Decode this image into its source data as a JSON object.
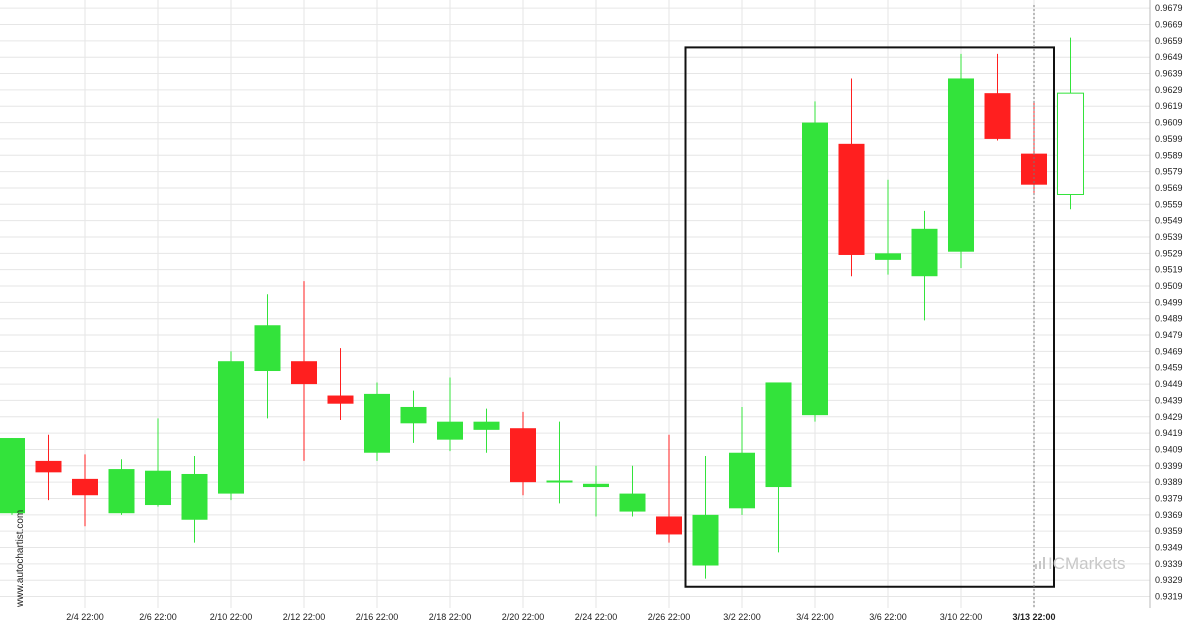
{
  "chart_data": {
    "type": "candlestick",
    "ylim": [
      0.9312,
      0.9684
    ],
    "y_ticks": [
      0.9679,
      0.9669,
      0.9659,
      0.9649,
      0.9639,
      0.9629,
      0.9619,
      0.9609,
      0.9599,
      0.9589,
      0.9579,
      0.9569,
      0.9559,
      0.9549,
      0.9539,
      0.9529,
      0.9519,
      0.9509,
      0.9499,
      0.9489,
      0.9479,
      0.9469,
      0.9459,
      0.9449,
      0.9439,
      0.9429,
      0.9419,
      0.9409,
      0.9399,
      0.9389,
      0.9379,
      0.9369,
      0.9359,
      0.9349,
      0.9339,
      0.9329,
      0.9319
    ],
    "x_labels": [
      {
        "label": "2/4 22:00",
        "index": 2
      },
      {
        "label": "2/6 22:00",
        "index": 4
      },
      {
        "label": "2/10 22:00",
        "index": 6
      },
      {
        "label": "2/12 22:00",
        "index": 8
      },
      {
        "label": "2/16 22:00",
        "index": 10
      },
      {
        "label": "2/18 22:00",
        "index": 12
      },
      {
        "label": "2/20 22:00",
        "index": 14
      },
      {
        "label": "2/24 22:00",
        "index": 16
      },
      {
        "label": "2/26 22:00",
        "index": 18
      },
      {
        "label": "3/2 22:00",
        "index": 20
      },
      {
        "label": "3/4 22:00",
        "index": 22
      },
      {
        "label": "3/6 22:00",
        "index": 24
      },
      {
        "label": "3/10 22:00",
        "index": 26
      },
      {
        "label": "3/13 22:00",
        "index": 28,
        "bold": true
      }
    ],
    "candles": [
      {
        "o": 0.937,
        "h": 0.9416,
        "l": 0.9369,
        "c": 0.9416
      },
      {
        "o": 0.9402,
        "h": 0.9418,
        "l": 0.9378,
        "c": 0.9395
      },
      {
        "o": 0.9391,
        "h": 0.9406,
        "l": 0.9362,
        "c": 0.9381
      },
      {
        "o": 0.937,
        "h": 0.9403,
        "l": 0.9369,
        "c": 0.9397
      },
      {
        "o": 0.9375,
        "h": 0.9428,
        "l": 0.9374,
        "c": 0.9396
      },
      {
        "o": 0.9366,
        "h": 0.9405,
        "l": 0.9352,
        "c": 0.9394
      },
      {
        "o": 0.9382,
        "h": 0.9469,
        "l": 0.9378,
        "c": 0.9463
      },
      {
        "o": 0.9457,
        "h": 0.9504,
        "l": 0.9428,
        "c": 0.9485
      },
      {
        "o": 0.9463,
        "h": 0.9512,
        "l": 0.9402,
        "c": 0.9449
      },
      {
        "o": 0.9442,
        "h": 0.9471,
        "l": 0.9427,
        "c": 0.9437
      },
      {
        "o": 0.9407,
        "h": 0.945,
        "l": 0.9402,
        "c": 0.9443
      },
      {
        "o": 0.9425,
        "h": 0.9445,
        "l": 0.9413,
        "c": 0.9435
      },
      {
        "o": 0.9415,
        "h": 0.9453,
        "l": 0.9408,
        "c": 0.9426
      },
      {
        "o": 0.9421,
        "h": 0.9434,
        "l": 0.9407,
        "c": 0.9426
      },
      {
        "o": 0.9422,
        "h": 0.9432,
        "l": 0.9381,
        "c": 0.9389
      },
      {
        "o": 0.939,
        "h": 0.9426,
        "l": 0.9376,
        "c": 0.939
      },
      {
        "o": 0.9386,
        "h": 0.9399,
        "l": 0.9368,
        "c": 0.9388
      },
      {
        "o": 0.9371,
        "h": 0.9399,
        "l": 0.9368,
        "c": 0.9382
      },
      {
        "o": 0.9368,
        "h": 0.9418,
        "l": 0.9352,
        "c": 0.9357
      },
      {
        "o": 0.9338,
        "h": 0.9405,
        "l": 0.933,
        "c": 0.9369
      },
      {
        "o": 0.9373,
        "h": 0.9435,
        "l": 0.9369,
        "c": 0.9407
      },
      {
        "o": 0.9386,
        "h": 0.945,
        "l": 0.9346,
        "c": 0.945
      },
      {
        "o": 0.943,
        "h": 0.9622,
        "l": 0.9426,
        "c": 0.9609
      },
      {
        "o": 0.9596,
        "h": 0.9636,
        "l": 0.9515,
        "c": 0.9528
      },
      {
        "o": 0.9525,
        "h": 0.9574,
        "l": 0.9516,
        "c": 0.9529
      },
      {
        "o": 0.9515,
        "h": 0.9555,
        "l": 0.9488,
        "c": 0.9544
      },
      {
        "o": 0.953,
        "h": 0.9651,
        "l": 0.952,
        "c": 0.9636
      },
      {
        "o": 0.9627,
        "h": 0.9651,
        "l": 0.9598,
        "c": 0.9599
      },
      {
        "o": 0.959,
        "h": 0.9621,
        "l": 0.9566,
        "c": 0.9571
      },
      {
        "o": 0.9565,
        "h": 0.9661,
        "l": 0.9556,
        "c": 0.9627,
        "hollow": true
      }
    ],
    "highlight_range": {
      "from_index": 19,
      "to_index": 28,
      "y_low": 0.9325,
      "y_high": 0.9655
    },
    "marker_index": 28,
    "colors": {
      "up": "#33e33b",
      "down": "#ff1f1f",
      "hollow": "#33e33b",
      "box": "#111111",
      "grid": "#e6e6e6",
      "marker": "#777777"
    }
  },
  "watermark": {
    "text": "www.autochartist.com"
  },
  "brand": {
    "text": "ICMarkets"
  }
}
